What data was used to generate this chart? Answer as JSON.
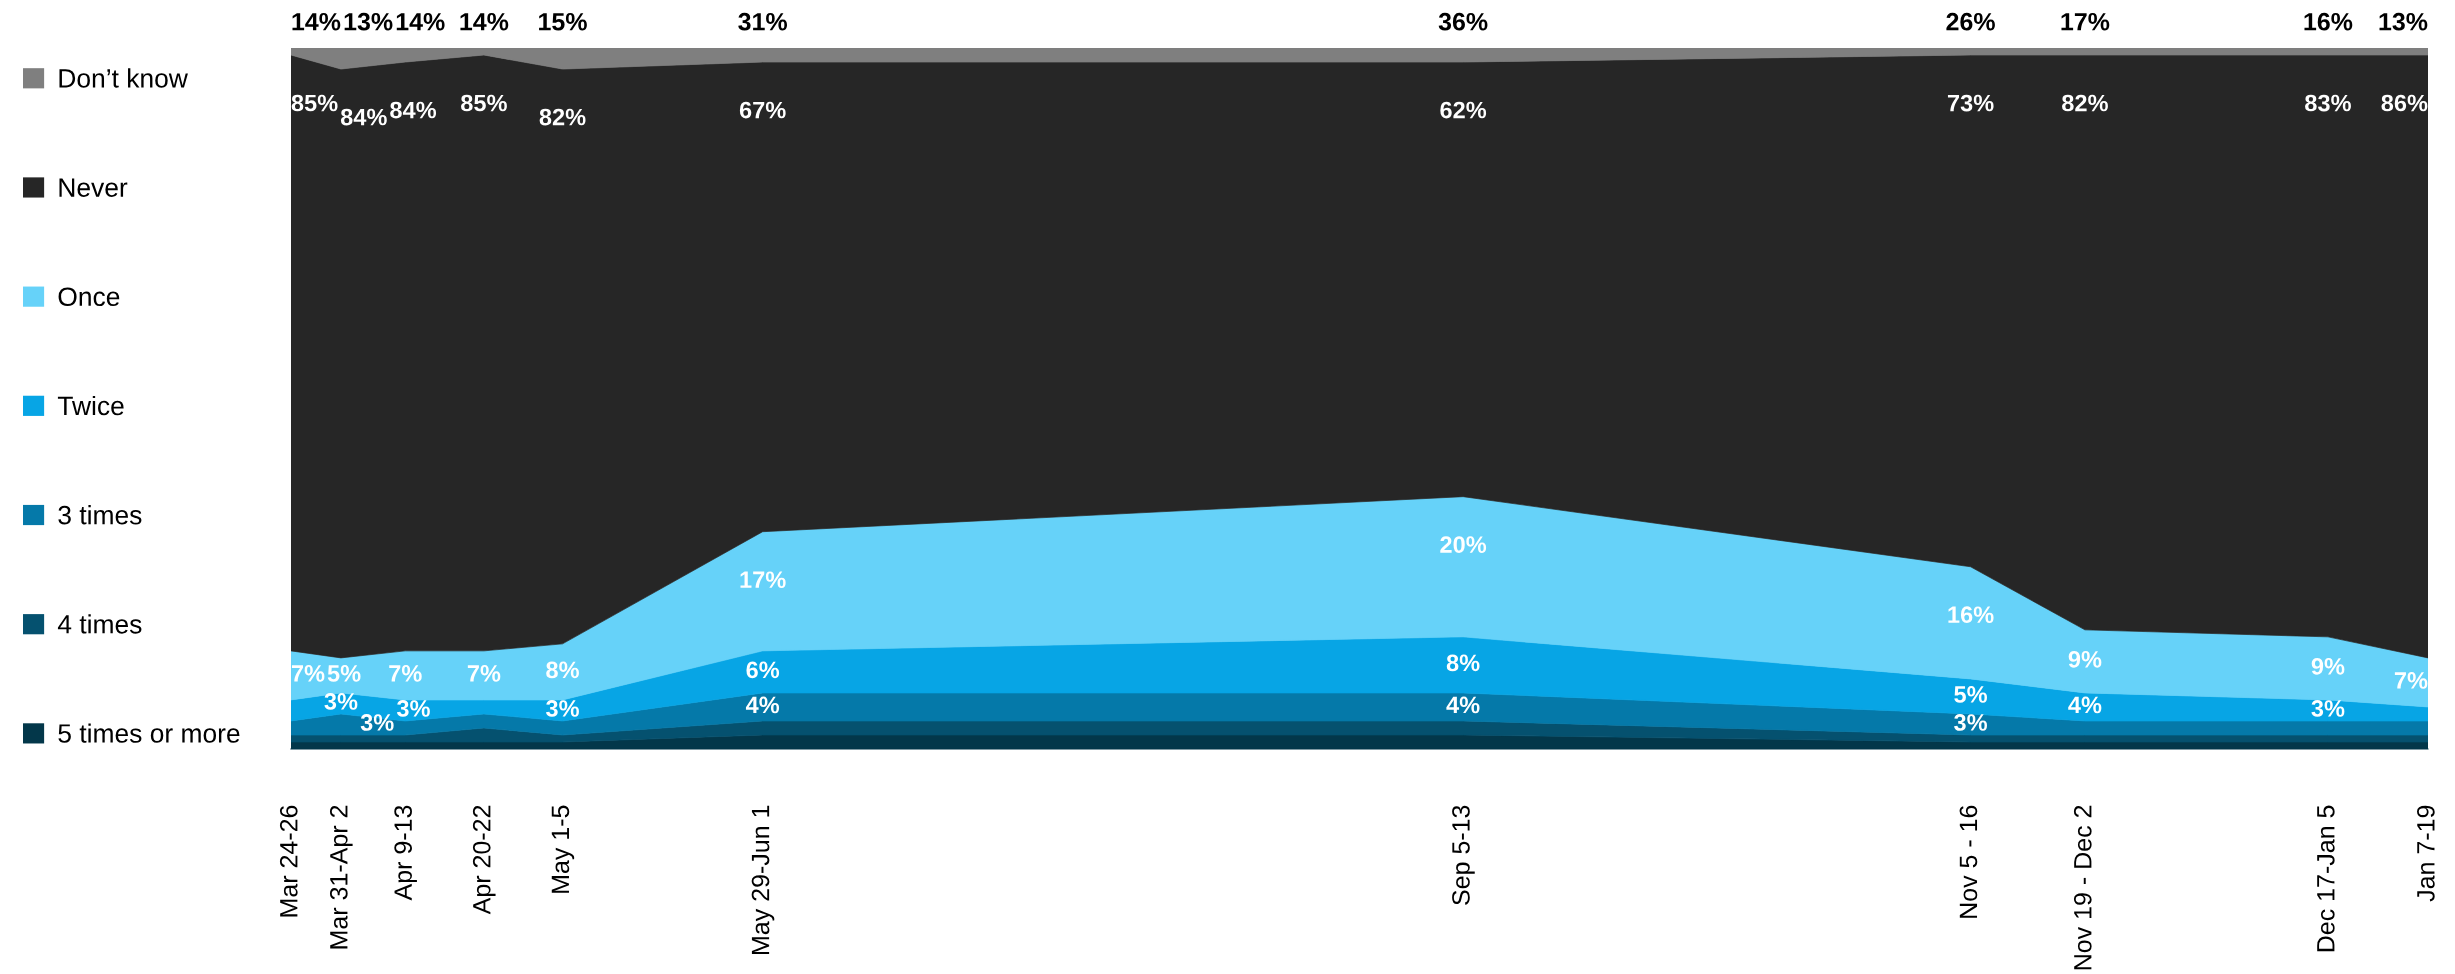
{
  "chart_data": {
    "type": "area",
    "stacked": true,
    "x": [
      "2020-03-25",
      "2020-04-01",
      "2020-04-10",
      "2020-04-21",
      "2020-05-02",
      "2020-05-30",
      "2020-09-05",
      "2020-11-15",
      "2020-12-01",
      "2021-01-04",
      "2021-01-18"
    ],
    "xlim": [
      "2020-03-25",
      "2021-01-18"
    ],
    "xticks": [
      {
        "value": "2020-03-25",
        "label": "Mar 24-26"
      },
      {
        "value": "2020-04-01",
        "label": "Mar 31-Apr 2"
      },
      {
        "value": "2020-04-10",
        "label": "Apr 9-13"
      },
      {
        "value": "2020-04-21",
        "label": "Apr 20-22"
      },
      {
        "value": "2020-05-02",
        "label": "May 1-5"
      },
      {
        "value": "2020-05-30",
        "label": "May 29-Jun 1"
      },
      {
        "value": "2020-09-05",
        "label": "Sep 5-13"
      },
      {
        "value": "2020-11-15",
        "label": "Nov 5 - 16"
      },
      {
        "value": "2020-12-01",
        "label": "Nov 19 - Dec 2"
      },
      {
        "value": "2021-01-04",
        "label": "Dec 17-Jan 5"
      },
      {
        "value": "2021-01-18",
        "label": "Jan 7-19"
      }
    ],
    "tick_labels": "x",
    "legend": "left",
    "series": [
      {
        "name": "5 times or more",
        "color": "#03374a",
        "values": [
          1,
          1,
          1,
          1,
          1,
          2,
          2,
          1,
          1,
          1,
          1
        ]
      },
      {
        "name": "4 times",
        "color": "#05516f",
        "values": [
          1,
          1,
          1,
          2,
          1,
          2,
          2,
          1,
          1,
          1,
          1
        ]
      },
      {
        "name": "3 times",
        "color": "#0579a9",
        "values": [
          2,
          3,
          2,
          2,
          2,
          4,
          4,
          3,
          2,
          2,
          2
        ],
        "value_labels": [
          null,
          "3%",
          null,
          null,
          null,
          "4%",
          "4%",
          "3%",
          null,
          null,
          null
        ]
      },
      {
        "name": "Twice",
        "color": "#07a5e5",
        "values": [
          3,
          3,
          3,
          2,
          3,
          6,
          8,
          5,
          4,
          3,
          2
        ],
        "value_labels": [
          null,
          "3%",
          "3%",
          null,
          "3%",
          "6%",
          "8%",
          "5%",
          "4%",
          "3%",
          null
        ]
      },
      {
        "name": "Once",
        "color": "#66d2f9",
        "values": [
          7,
          5,
          7,
          7,
          8,
          17,
          20,
          16,
          9,
          9,
          7
        ],
        "value_labels": [
          "7%",
          "5%",
          "7%",
          "7%",
          "8%",
          "17%",
          "20%",
          "16%",
          "9%",
          "9%",
          "7%"
        ]
      },
      {
        "name": "Never",
        "color": "#262626",
        "values": [
          85,
          84,
          84,
          85,
          82,
          67,
          62,
          73,
          82,
          83,
          86
        ],
        "value_labels": [
          "85%",
          "84%",
          "84%",
          "85%",
          "82%",
          "67%",
          "62%",
          "73%",
          "82%",
          "83%",
          "86%"
        ]
      },
      {
        "name": "Don’t know",
        "color": "#7f7f7f",
        "values": [
          1,
          3,
          2,
          1,
          3,
          2,
          2,
          1,
          1,
          1,
          1
        ]
      }
    ],
    "annotations": [
      {
        "text": "14%",
        "x": "2020-03-25",
        "y": 100
      },
      {
        "text": "13%",
        "x": "2020-04-01",
        "y": 100
      },
      {
        "text": "14%",
        "x": "2020-04-10",
        "y": 100
      },
      {
        "text": "14%",
        "x": "2020-04-21",
        "y": 100
      },
      {
        "text": "15%",
        "x": "2020-05-02",
        "y": 100
      },
      {
        "text": "31%",
        "x": "2020-05-30",
        "y": 100
      },
      {
        "text": "36%",
        "x": "2020-09-05",
        "y": 100
      },
      {
        "text": "26%",
        "x": "2020-11-15",
        "y": 100
      },
      {
        "text": "17%",
        "x": "2020-12-01",
        "y": 100
      },
      {
        "text": "16%",
        "x": "2021-01-04",
        "y": 100
      },
      {
        "text": "13%",
        "x": "2021-01-18",
        "y": 100
      }
    ]
  }
}
